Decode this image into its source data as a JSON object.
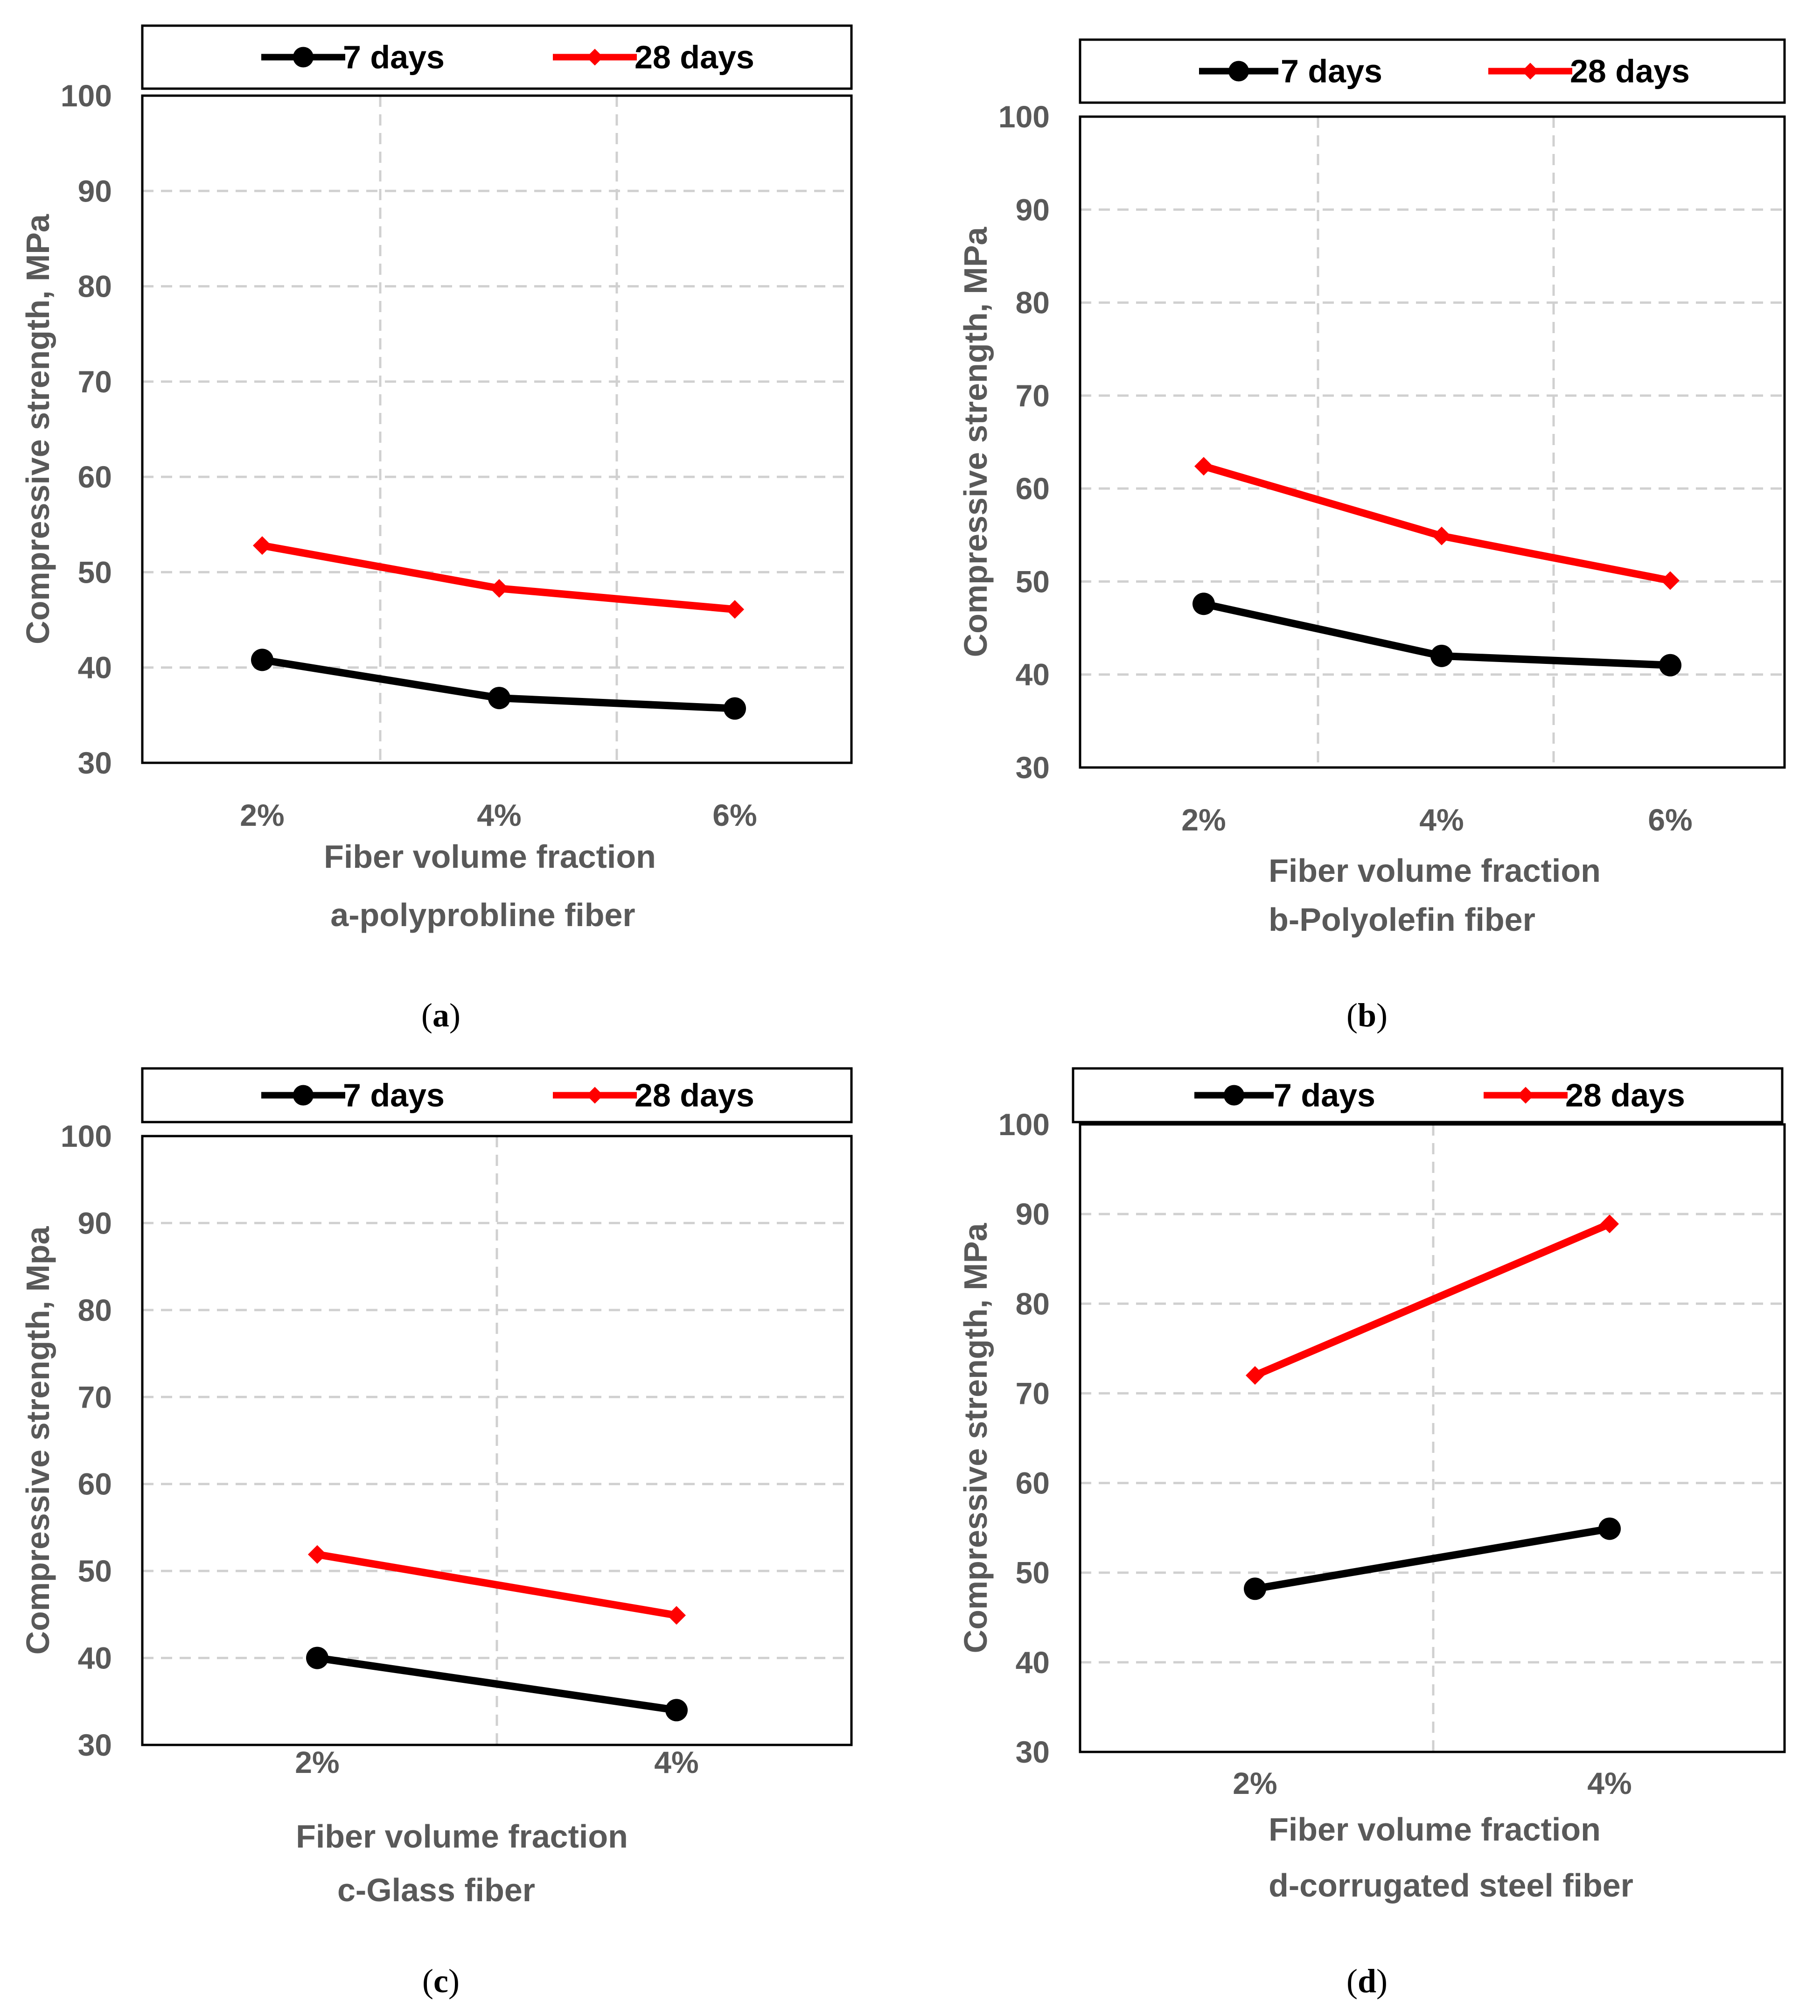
{
  "chart_data": [
    {
      "type": "line",
      "panel": "a",
      "legend": [
        "7 days",
        "28 days"
      ],
      "categories": [
        "2%",
        "4%",
        "6%"
      ],
      "series": [
        {
          "name": "7 days",
          "color": "#000000",
          "marker": "circle",
          "values": [
            40.8,
            36.8,
            35.7
          ]
        },
        {
          "name": "28 days",
          "color": "#ff0000",
          "marker": "diamond",
          "values": [
            52.8,
            48.3,
            46.1
          ]
        }
      ],
      "yticks": [
        "30",
        "40",
        "50",
        "60",
        "70",
        "80",
        "90",
        "100"
      ],
      "ylim": [
        30,
        100
      ],
      "ylabel": "Compressive strength, MPa",
      "xlabel": "Fiber volume fraction",
      "subtitle": "a-polyprobline fiber",
      "caption_open": "(",
      "caption_letter": "a",
      "caption_close": ")"
    },
    {
      "type": "line",
      "panel": "b",
      "legend": [
        "7 days",
        "28 days"
      ],
      "categories": [
        "2%",
        "4%",
        "6%"
      ],
      "series": [
        {
          "name": "7 days",
          "color": "#000000",
          "marker": "circle",
          "values": [
            47.6,
            42.0,
            41.0
          ]
        },
        {
          "name": "28 days",
          "color": "#ff0000",
          "marker": "diamond",
          "values": [
            62.4,
            54.9,
            50.1
          ]
        }
      ],
      "yticks": [
        "30",
        "40",
        "50",
        "60",
        "70",
        "80",
        "90",
        "100"
      ],
      "ylim": [
        30,
        100
      ],
      "ylabel": "Compressive strength, MPa",
      "xlabel": "Fiber volume fraction",
      "subtitle": "b-Polyolefin fiber",
      "caption_open": "(",
      "caption_letter": "b",
      "caption_close": ")"
    },
    {
      "type": "line",
      "panel": "c",
      "legend": [
        "7 days",
        "28 days"
      ],
      "categories": [
        "2%",
        "4%"
      ],
      "series": [
        {
          "name": "7 days",
          "color": "#000000",
          "marker": "circle",
          "values": [
            40.0,
            34.0
          ]
        },
        {
          "name": "28 days",
          "color": "#ff0000",
          "marker": "diamond",
          "values": [
            51.9,
            44.9
          ]
        }
      ],
      "yticks": [
        "30",
        "40",
        "50",
        "60",
        "70",
        "80",
        "90",
        "100"
      ],
      "ylim": [
        30,
        100
      ],
      "ylabel": "Compressive strength, Mpa",
      "xlabel": "Fiber volume fraction",
      "subtitle": "c-Glass fiber",
      "caption_open": "(",
      "caption_letter": "c",
      "caption_close": ")"
    },
    {
      "type": "line",
      "panel": "d",
      "legend": [
        "7 days",
        "28 days"
      ],
      "categories": [
        "2%",
        "4%"
      ],
      "series": [
        {
          "name": "7 days",
          "color": "#000000",
          "marker": "circle",
          "values": [
            48.2,
            54.9
          ]
        },
        {
          "name": "28 days",
          "color": "#ff0000",
          "marker": "diamond",
          "values": [
            72.0,
            88.9
          ]
        }
      ],
      "yticks": [
        "30",
        "40",
        "50",
        "60",
        "70",
        "80",
        "90",
        "100"
      ],
      "ylim": [
        30,
        100
      ],
      "ylabel": "Compressive strength, MPa",
      "xlabel": "Fiber volume fraction",
      "subtitle": "d-corrugated steel fiber",
      "caption_open": "(",
      "caption_letter": "d",
      "caption_close": ")"
    }
  ]
}
